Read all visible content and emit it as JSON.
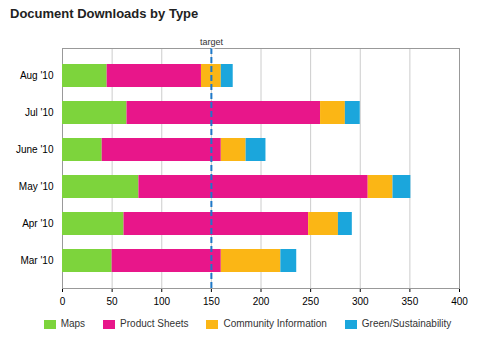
{
  "chart_data": {
    "type": "bar",
    "orientation": "horizontal",
    "stacked": true,
    "grid": true,
    "title": "Document Downloads by Type",
    "categories": [
      "Aug '10",
      "Jul '10",
      "June '10",
      "May '10",
      "Apr '10",
      "Mar '10"
    ],
    "series": [
      {
        "name": "Maps",
        "color": "#7dd43c",
        "values": [
          45,
          65,
          40,
          77,
          62,
          50
        ]
      },
      {
        "name": "Product Sheets",
        "color": "#e8168a",
        "values": [
          95,
          195,
          120,
          231,
          186,
          110
        ]
      },
      {
        "name": "Community Information",
        "color": "#fbb615",
        "values": [
          20,
          25,
          25,
          25,
          30,
          60
        ]
      },
      {
        "name": "Green/Sustainability",
        "color": "#1ba6dc",
        "values": [
          12,
          15,
          20,
          18,
          14,
          16
        ]
      }
    ],
    "xlim": [
      0,
      400
    ],
    "xticks": [
      0,
      50,
      100,
      150,
      200,
      250,
      300,
      350,
      400
    ],
    "legend": "bottom",
    "annotations": [
      {
        "text": "target",
        "x": 150
      }
    ]
  }
}
